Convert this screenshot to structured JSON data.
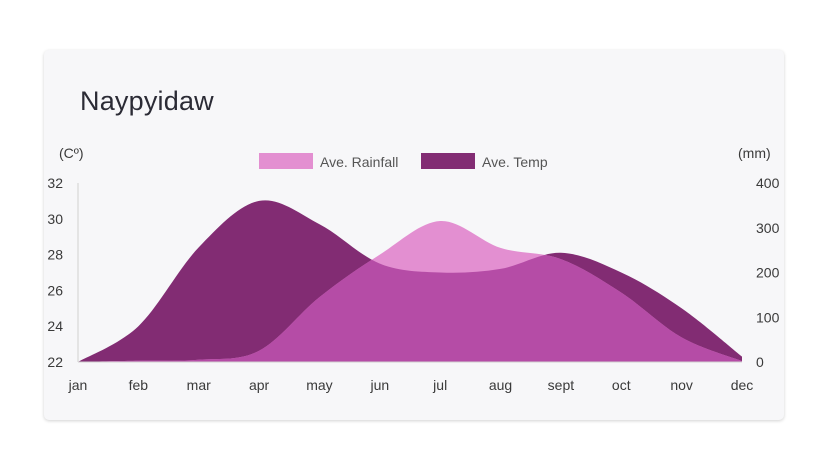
{
  "chart_data": {
    "type": "area",
    "title": "Naypyidaw",
    "categories": [
      "jan",
      "feb",
      "mar",
      "apr",
      "may",
      "jun",
      "jul",
      "aug",
      "sept",
      "oct",
      "nov",
      "dec"
    ],
    "series": [
      {
        "name": "Ave. Rainfall",
        "axis": "right",
        "color": "#e38fd1",
        "values": [
          0,
          3,
          5,
          25,
          145,
          240,
          315,
          255,
          230,
          155,
          55,
          2
        ]
      },
      {
        "name": "Ave. Temp",
        "axis": "left",
        "color": "#822c73",
        "values": [
          22,
          24,
          28.4,
          31,
          29.7,
          27.5,
          27,
          27.2,
          28.1,
          27,
          25,
          22.3
        ]
      }
    ],
    "yleft": {
      "unit": "(Cº)",
      "ticks": [
        "32",
        "30",
        "28",
        "26",
        "24",
        "22"
      ],
      "lim": [
        22,
        32
      ]
    },
    "yright": {
      "unit": "(mm)",
      "ticks": [
        "400",
        "300",
        "200",
        "100",
        "0"
      ],
      "lim": [
        0,
        400
      ]
    },
    "legend_position": "top-center",
    "overlap_color": "#b54ca6"
  }
}
